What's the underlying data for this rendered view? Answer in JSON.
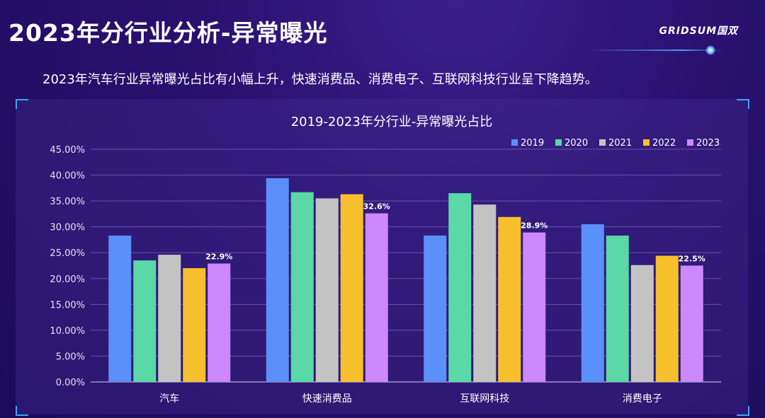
{
  "page": {
    "title": "2023年分行业分析-异常曝光",
    "subtitle": "2023年汽车行业异常曝光占比有小幅上升，快速消费品、消费电子、互联网科技行业呈下降趋势。",
    "logo_text": "GRIDSUM国双"
  },
  "chart_data": {
    "type": "bar",
    "title": "2019-2023年分行业-异常曝光占比",
    "xlabel": "",
    "ylabel": "",
    "ylim": [
      0,
      45
    ],
    "yticks": [
      0,
      5,
      10,
      15,
      20,
      25,
      30,
      35,
      40,
      45
    ],
    "ytick_labels": [
      "0.00%",
      "5.00%",
      "10.00%",
      "15.00%",
      "20.00%",
      "25.00%",
      "30.00%",
      "35.00%",
      "40.00%",
      "45.00%"
    ],
    "grid": true,
    "legend_position": "top-right",
    "categories": [
      "汽车",
      "快速消费品",
      "互联网科技",
      "消费电子"
    ],
    "series": [
      {
        "name": "2019",
        "color": "#5b8ff9",
        "values": [
          28.3,
          39.4,
          28.3,
          30.5
        ]
      },
      {
        "name": "2020",
        "color": "#5ad8a6",
        "values": [
          23.5,
          36.7,
          36.5,
          28.3
        ]
      },
      {
        "name": "2021",
        "color": "#c3c3c3",
        "values": [
          24.6,
          35.5,
          34.3,
          22.6
        ]
      },
      {
        "name": "2022",
        "color": "#f6c02d",
        "values": [
          22.0,
          36.3,
          31.9,
          24.4
        ]
      },
      {
        "name": "2023",
        "color": "#cc88fc",
        "values": [
          22.9,
          32.6,
          28.9,
          22.5
        ],
        "data_labels": [
          "22.9%",
          "32.6%",
          "28.9%",
          "22.5%"
        ]
      }
    ]
  }
}
